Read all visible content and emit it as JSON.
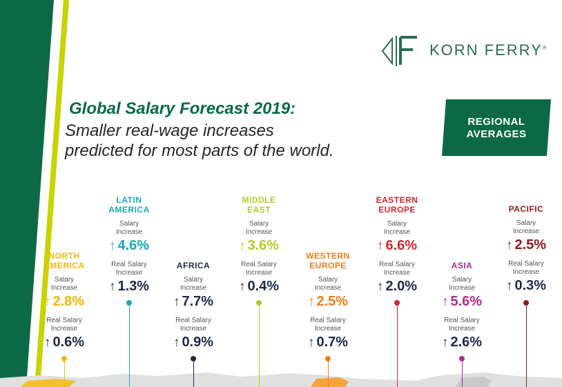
{
  "brand": {
    "name": "KORN FERRY",
    "registered": "®"
  },
  "header": {
    "title": "Global Salary Forecast 2019:",
    "subtitle_line1": "Smaller real-wage increases",
    "subtitle_line2": "predicted for most parts of the world."
  },
  "badge": {
    "line1": "REGIONAL",
    "line2": "AVERAGES"
  },
  "labels": {
    "salary_l1": "Salary",
    "salary_l2": "Increase",
    "real_l1": "Real Salary",
    "real_l2": "Increase",
    "arrow": "↑"
  },
  "regions": [
    {
      "name_l1": "NORTH",
      "name_l2": "AMERICA",
      "salary": "2.8%",
      "real": "0.6%",
      "color": "#f2b705"
    },
    {
      "name_l1": "LATIN",
      "name_l2": "AMERICA",
      "salary": "4.6%",
      "real": "1.3%",
      "color": "#1ba8b5"
    },
    {
      "name_l1": "AFRICA",
      "name_l2": "",
      "salary": "7.7%",
      "real": "0.9%",
      "color": "#1c2a4a"
    },
    {
      "name_l1": "MIDDLE",
      "name_l2": "EAST",
      "salary": "3.6%",
      "real": "0.4%",
      "color": "#b6c928"
    },
    {
      "name_l1": "WESTERN",
      "name_l2": "EUROPE",
      "salary": "2.5%",
      "real": "0.7%",
      "color": "#ef7d17"
    },
    {
      "name_l1": "EASTERN",
      "name_l2": "EUROPE",
      "salary": "6.6%",
      "real": "2.0%",
      "color": "#d3262b"
    },
    {
      "name_l1": "ASIA",
      "name_l2": "",
      "salary": "5.6%",
      "real": "2.6%",
      "color": "#b02a8a"
    },
    {
      "name_l1": "PACIFIC",
      "name_l2": "",
      "salary": "2.5%",
      "real": "0.3%",
      "color": "#8f1a1a"
    }
  ],
  "colors": {
    "brand_green": "#0b6a45",
    "lime": "#c8d400"
  }
}
